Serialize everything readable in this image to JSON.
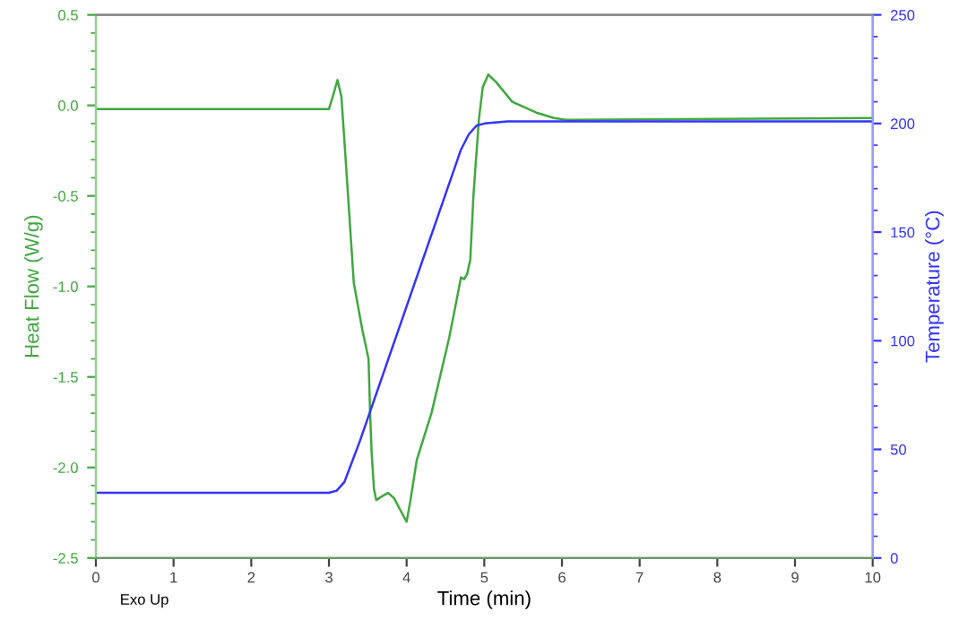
{
  "chart_data": {
    "type": "line",
    "xlabel": "Time (min)",
    "ylabel": "Heat Flow (W/g)",
    "y2label": "Temperature (°C)",
    "annotations": [
      "Exo Up"
    ],
    "xlim": [
      0,
      10
    ],
    "xticks": [
      0,
      1,
      2,
      3,
      4,
      5,
      6,
      7,
      8,
      9,
      10
    ],
    "ylim": [
      -2.5,
      0.5
    ],
    "yticks": [
      {
        "value": -2.5,
        "label": "-2.5"
      },
      {
        "value": -2.0,
        "label": "-2.0"
      },
      {
        "value": -1.5,
        "label": "-1.5"
      },
      {
        "value": -1.0,
        "label": "-1.0"
      },
      {
        "value": -0.5,
        "label": "-0.5"
      },
      {
        "value": 0.0,
        "label": "0.0"
      },
      {
        "value": 0.5,
        "label": "0.5"
      }
    ],
    "y2lim": [
      0,
      250
    ],
    "y2ticks": [
      0,
      50,
      100,
      150,
      200,
      250
    ],
    "grid": false,
    "legend": false,
    "series": [
      {
        "color": "#3fa83f",
        "x": [
          0,
          3.0,
          3.05,
          3.11,
          3.16,
          3.2,
          3.32,
          3.43,
          3.51,
          3.53,
          3.55,
          3.58,
          3.61,
          3.68,
          3.76,
          3.84,
          3.9,
          4.0,
          4.05,
          4.13,
          4.32,
          4.55,
          4.7,
          4.74,
          4.78,
          4.82,
          4.86,
          4.93,
          4.98,
          5.05,
          5.15,
          5.36,
          5.67,
          5.9,
          6.05,
          10
        ],
        "values": [
          -0.02,
          -0.02,
          0.05,
          0.14,
          0.05,
          -0.2,
          -0.98,
          -1.24,
          -1.4,
          -1.7,
          -1.92,
          -2.12,
          -2.18,
          -2.16,
          -2.14,
          -2.17,
          -2.22,
          -2.3,
          -2.18,
          -1.96,
          -1.7,
          -1.28,
          -0.95,
          -0.96,
          -0.93,
          -0.85,
          -0.5,
          -0.08,
          0.1,
          0.17,
          0.13,
          0.02,
          -0.04,
          -0.07,
          -0.08,
          -0.07
        ]
      },
      {
        "color": "#3333ff",
        "axis": "y2",
        "x": [
          0,
          3.0,
          3.1,
          3.2,
          3.4,
          4.7,
          4.8,
          4.9,
          5.0,
          5.3,
          10
        ],
        "values": [
          30,
          30,
          31,
          35,
          54,
          188,
          195,
          199,
          200,
          201,
          201
        ]
      }
    ]
  }
}
